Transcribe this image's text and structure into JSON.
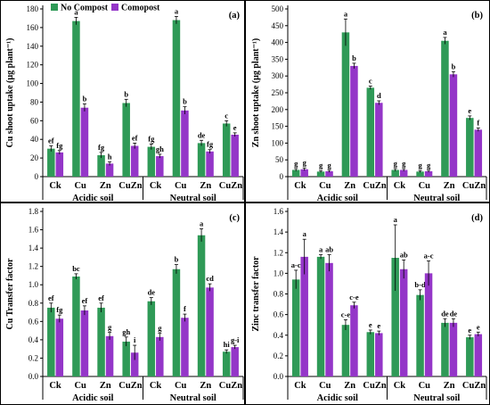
{
  "colors": {
    "no_compost": "#2f9a57",
    "compost": "#9436c8",
    "axis": "#000000"
  },
  "legend": {
    "no_compost": "No Compost",
    "compost": "Comopost"
  },
  "chart_data": [
    {
      "type": "bar",
      "panel_label": "(a)",
      "ylabel": "Cu shoot uptake (µg plant⁻¹)",
      "ylim": [
        0,
        180
      ],
      "ytick_step": 20,
      "ytick_decimals": 0,
      "categories": [
        "Ck",
        "Cu",
        "Zn",
        "CuZn",
        "Ck",
        "Cu",
        "Zn",
        "CuZn"
      ],
      "groups": [
        "Acidic soil",
        "Neutral soil"
      ],
      "series": [
        {
          "name": "No Compost",
          "values": [
            30,
            167,
            23,
            79,
            32,
            168,
            36,
            57
          ],
          "errors": [
            3,
            4,
            3,
            4,
            3,
            4,
            3,
            3
          ],
          "labels": [
            "ef",
            "a",
            "fg",
            "b",
            "fg",
            "a",
            "de",
            "c"
          ]
        },
        {
          "name": "Comopost",
          "values": [
            26,
            74,
            14,
            33,
            22,
            71,
            27,
            45
          ],
          "errors": [
            2,
            4,
            2,
            3,
            2,
            4,
            2,
            2
          ],
          "labels": [
            "fg",
            "b",
            "h",
            "ef",
            "gh",
            "b",
            "fg",
            "e"
          ]
        }
      ]
    },
    {
      "type": "bar",
      "panel_label": "(b)",
      "ylabel": "Zn shoot uptake (µg plant⁻¹)",
      "ylim": [
        0,
        500
      ],
      "ytick_step": 50,
      "ytick_decimals": 0,
      "categories": [
        "Ck",
        "Cu",
        "Zn",
        "CuZn",
        "Ck",
        "Cu",
        "Zn",
        "CuZn"
      ],
      "groups": [
        "Acidic soil",
        "Neutral soil"
      ],
      "series": [
        {
          "name": "No Compost",
          "values": [
            20,
            15,
            430,
            265,
            20,
            15,
            405,
            175
          ],
          "errors": [
            4,
            3,
            40,
            5,
            4,
            3,
            10,
            6
          ],
          "labels": [
            "g",
            "g",
            "a",
            "c",
            "g",
            "g",
            "a",
            "e"
          ]
        },
        {
          "name": "Comopost",
          "values": [
            22,
            16,
            330,
            220,
            20,
            16,
            305,
            140
          ],
          "errors": [
            4,
            3,
            8,
            6,
            4,
            3,
            8,
            5
          ],
          "labels": [
            "g",
            "g",
            "b",
            "d",
            "g",
            "g",
            "b",
            "f"
          ]
        }
      ]
    },
    {
      "type": "bar",
      "panel_label": "(c)",
      "ylabel": "Cu Transfer factor",
      "ylim": [
        0,
        1.8
      ],
      "ytick_step": 0.2,
      "ytick_decimals": 1,
      "categories": [
        "Ck",
        "Cu",
        "Zn",
        "CuZn",
        "Ck",
        "Cu",
        "Zn",
        "CuZn"
      ],
      "groups": [
        "Acidic soil",
        "Neutral soil"
      ],
      "series": [
        {
          "name": "No Compost",
          "values": [
            0.75,
            1.09,
            0.75,
            0.38,
            0.82,
            1.17,
            1.54,
            0.27
          ],
          "errors": [
            0.05,
            0.03,
            0.05,
            0.05,
            0.04,
            0.05,
            0.07,
            0.02
          ],
          "labels": [
            "ef",
            "bc",
            "ef",
            "gh",
            "de",
            "b",
            "a",
            "hi"
          ]
        },
        {
          "name": "Comopost",
          "values": [
            0.63,
            0.72,
            0.44,
            0.26,
            0.43,
            0.64,
            0.97,
            0.32
          ],
          "errors": [
            0.04,
            0.05,
            0.04,
            0.08,
            0.04,
            0.04,
            0.04,
            0.02
          ],
          "labels": [
            "fg",
            "ef",
            "g",
            "i",
            "g",
            "f",
            "cd",
            "g-i"
          ]
        }
      ]
    },
    {
      "type": "bar",
      "panel_label": "(d)",
      "ylabel": "Zinc transfer factor",
      "ylim": [
        0,
        1.6
      ],
      "ytick_step": 0.2,
      "ytick_decimals": 1,
      "categories": [
        "Ck",
        "Cu",
        "Zn",
        "CuZn",
        "Ck",
        "Cu",
        "Zn",
        "CuZn"
      ],
      "groups": [
        "Acidic soil",
        "Neutral soil"
      ],
      "series": [
        {
          "name": "No Compost",
          "values": [
            0.94,
            1.16,
            0.5,
            0.43,
            1.15,
            0.79,
            0.52,
            0.38
          ],
          "errors": [
            0.09,
            0.02,
            0.05,
            0.02,
            0.32,
            0.05,
            0.04,
            0.02
          ],
          "labels": [
            "a-c",
            "a",
            "c-e",
            "e",
            "a",
            "b-d",
            "de",
            "e"
          ]
        },
        {
          "name": "Comopost",
          "values": [
            1.16,
            1.1,
            0.69,
            0.42,
            1.04,
            1.0,
            0.52,
            0.41
          ],
          "errors": [
            0.17,
            0.08,
            0.03,
            0.02,
            0.09,
            0.12,
            0.04,
            0.02
          ],
          "labels": [
            "a",
            "ab",
            "c-e",
            "e",
            "ab",
            "a-c",
            "de",
            "e"
          ]
        }
      ]
    }
  ]
}
